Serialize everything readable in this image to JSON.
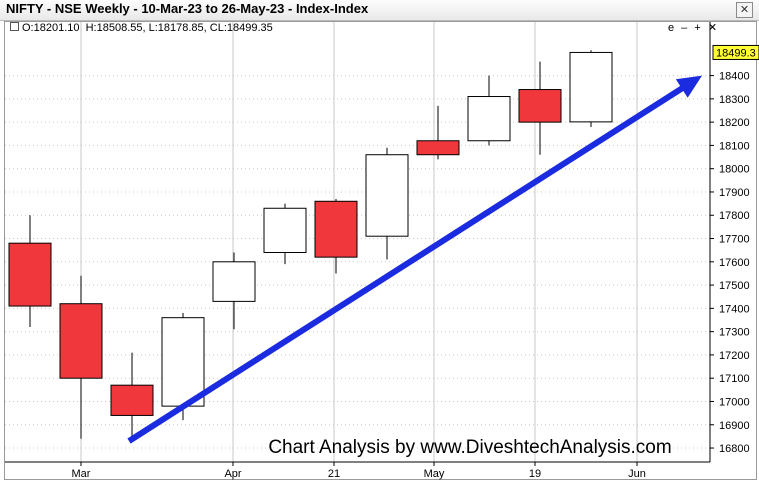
{
  "window": {
    "title": "NIFTY - NSE Weekly - 10-Mar-23 to 26-May-23 - Index-Index",
    "close_glyph": "✕"
  },
  "panel": {
    "ohlc_text": "O:18201.10, H:18508.55, L:18178.85, CL:18499.35",
    "controls": "e – + ✕"
  },
  "chart_data": {
    "type": "candlestick",
    "title": "NIFTY - NSE Weekly - 10-Mar-23 to 26-May-23 - Index-Index",
    "watermark": "Chart Analysis by www.DiveshtechAnalysis.com",
    "x_labels": [
      "Mar",
      "Apr",
      "21",
      "May",
      "19",
      "Jun"
    ],
    "y_ticks": [
      16800,
      16900,
      17000,
      17100,
      17200,
      17300,
      17400,
      17500,
      17600,
      17700,
      17800,
      17900,
      18000,
      18100,
      18200,
      18300,
      18400
    ],
    "ylim": [
      16740,
      18570
    ],
    "last_price": "18499.3",
    "last_price_value": 18499.35,
    "grid": true,
    "up_color": "#ffffff",
    "down_color": "#f0383c",
    "candles": [
      {
        "open": 17680,
        "high": 17800,
        "low": 17320,
        "close": 17410
      },
      {
        "open": 17420,
        "high": 17540,
        "low": 16840,
        "close": 17100
      },
      {
        "open": 17070,
        "high": 17210,
        "low": 16830,
        "close": 16940
      },
      {
        "open": 16980,
        "high": 17380,
        "low": 16920,
        "close": 17360
      },
      {
        "open": 17430,
        "high": 17640,
        "low": 17310,
        "close": 17600
      },
      {
        "open": 17640,
        "high": 17850,
        "low": 17590,
        "close": 17830
      },
      {
        "open": 17860,
        "high": 17870,
        "low": 17550,
        "close": 17620
      },
      {
        "open": 17710,
        "high": 18090,
        "low": 17610,
        "close": 18060
      },
      {
        "open": 18120,
        "high": 18270,
        "low": 18040,
        "close": 18060
      },
      {
        "open": 18120,
        "high": 18400,
        "low": 18100,
        "close": 18310
      },
      {
        "open": 18340,
        "high": 18460,
        "low": 18060,
        "close": 18200
      },
      {
        "open": 18201.1,
        "high": 18508.55,
        "low": 18178.85,
        "close": 18499.35
      }
    ],
    "trend_arrow": {
      "from": [
        2,
        16830
      ],
      "to": [
        13,
        18400
      ],
      "color": "#1a2be0"
    },
    "colors": {
      "grid": "#c8c8c8",
      "last_price_bg": "#ffff33",
      "text": "#000000"
    }
  }
}
